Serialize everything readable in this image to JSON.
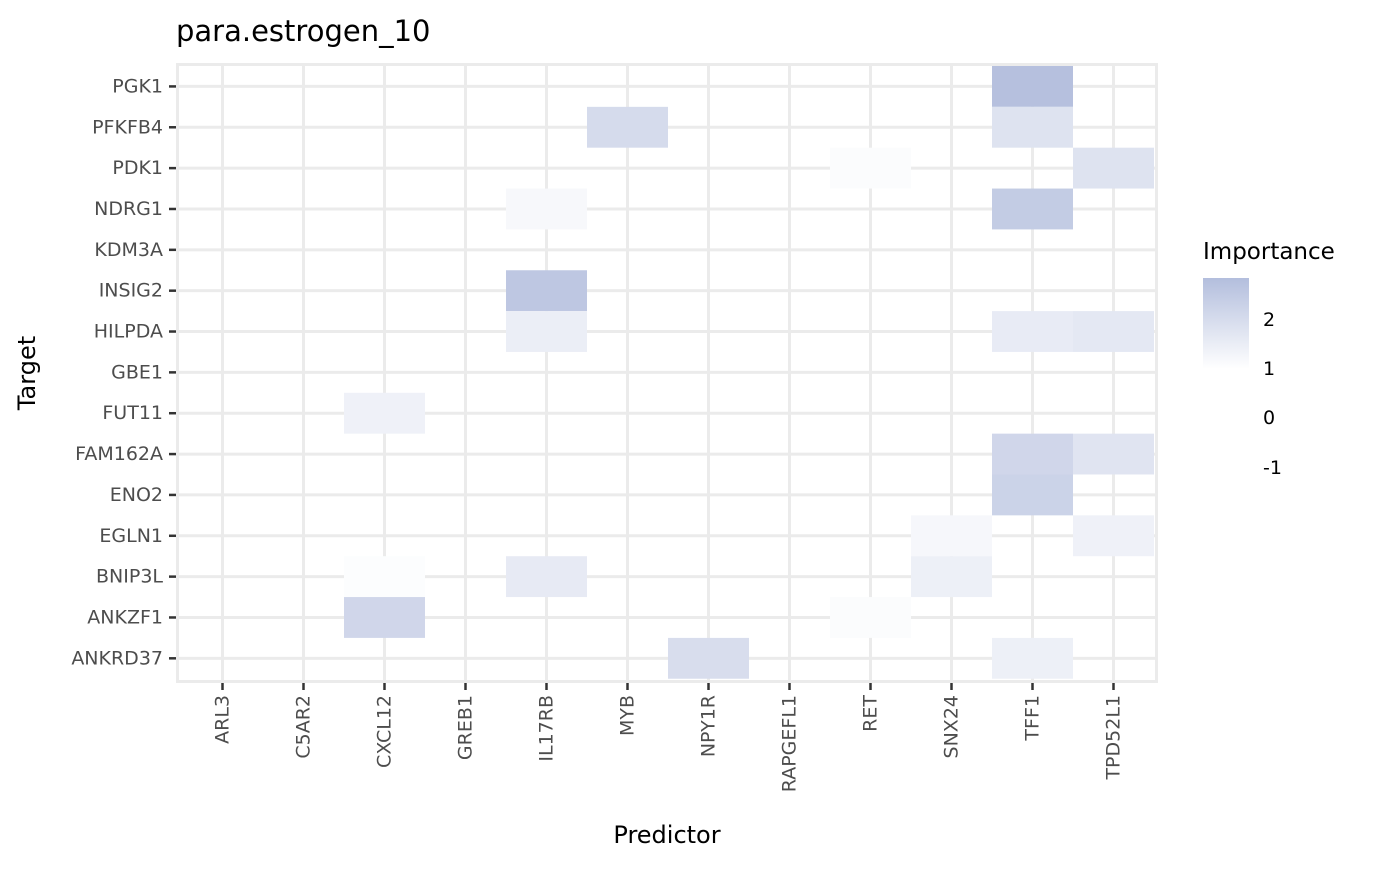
{
  "chart_data": {
    "type": "heatmap",
    "title": "para.estrogen_10",
    "xlabel": "Predictor",
    "ylabel": "Target",
    "x_categories": [
      "ARL3",
      "C5AR2",
      "CXCL12",
      "GREB1",
      "IL17RB",
      "MYB",
      "NPY1R",
      "RAPGEFL1",
      "RET",
      "SNX24",
      "TFF1",
      "TPD52L1"
    ],
    "y_categories": [
      "ANKRD37",
      "ANKZF1",
      "BNIP3L",
      "EGLN1",
      "ENO2",
      "FAM162A",
      "FUT11",
      "GBE1",
      "HILPDA",
      "INSIG2",
      "KDM3A",
      "NDRG1",
      "PDK1",
      "PFKFB4",
      "PGK1"
    ],
    "cells": [
      {
        "x": "TFF1",
        "y": "PGK1",
        "value": 2.7
      },
      {
        "x": "MYB",
        "y": "PFKFB4",
        "value": 1.55
      },
      {
        "x": "TFF1",
        "y": "PFKFB4",
        "value": 1.2
      },
      {
        "x": "RET",
        "y": "PDK1",
        "value": 0.15
      },
      {
        "x": "TPD52L1",
        "y": "PDK1",
        "value": 1.2
      },
      {
        "x": "IL17RB",
        "y": "NDRG1",
        "value": 0.3
      },
      {
        "x": "TFF1",
        "y": "NDRG1",
        "value": 2.2
      },
      {
        "x": "IL17RB",
        "y": "INSIG2",
        "value": 2.4
      },
      {
        "x": "IL17RB",
        "y": "HILPDA",
        "value": 0.75
      },
      {
        "x": "TFF1",
        "y": "HILPDA",
        "value": 0.85
      },
      {
        "x": "TPD52L1",
        "y": "HILPDA",
        "value": 1.0
      },
      {
        "x": "CXCL12",
        "y": "FUT11",
        "value": 0.6
      },
      {
        "x": "TFF1",
        "y": "FAM162A",
        "value": 1.75
      },
      {
        "x": "TPD52L1",
        "y": "FAM162A",
        "value": 1.15
      },
      {
        "x": "TFF1",
        "y": "ENO2",
        "value": 1.9
      },
      {
        "x": "SNX24",
        "y": "EGLN1",
        "value": 0.35
      },
      {
        "x": "TPD52L1",
        "y": "EGLN1",
        "value": 0.6
      },
      {
        "x": "CXCL12",
        "y": "BNIP3L",
        "value": 0.1
      },
      {
        "x": "IL17RB",
        "y": "BNIP3L",
        "value": 0.9
      },
      {
        "x": "SNX24",
        "y": "BNIP3L",
        "value": 0.65
      },
      {
        "x": "CXCL12",
        "y": "ANKZF1",
        "value": 1.75
      },
      {
        "x": "RET",
        "y": "ANKZF1",
        "value": 0.15
      },
      {
        "x": "NPY1R",
        "y": "ANKRD37",
        "value": 1.45
      },
      {
        "x": "TFF1",
        "y": "ANKRD37",
        "value": 0.65
      }
    ],
    "legend": {
      "title": "Importance",
      "position": "right",
      "ticks": [
        2,
        1,
        0,
        -1
      ],
      "tick_labels": [
        "2",
        "1",
        "0",
        "-1"
      ],
      "range": [
        0,
        2.8
      ],
      "color_low": "#ffffff",
      "color_high": "#b3bedd"
    },
    "panel_background": "#ffffff",
    "panel_border": "#ebebeb",
    "grid": true
  }
}
